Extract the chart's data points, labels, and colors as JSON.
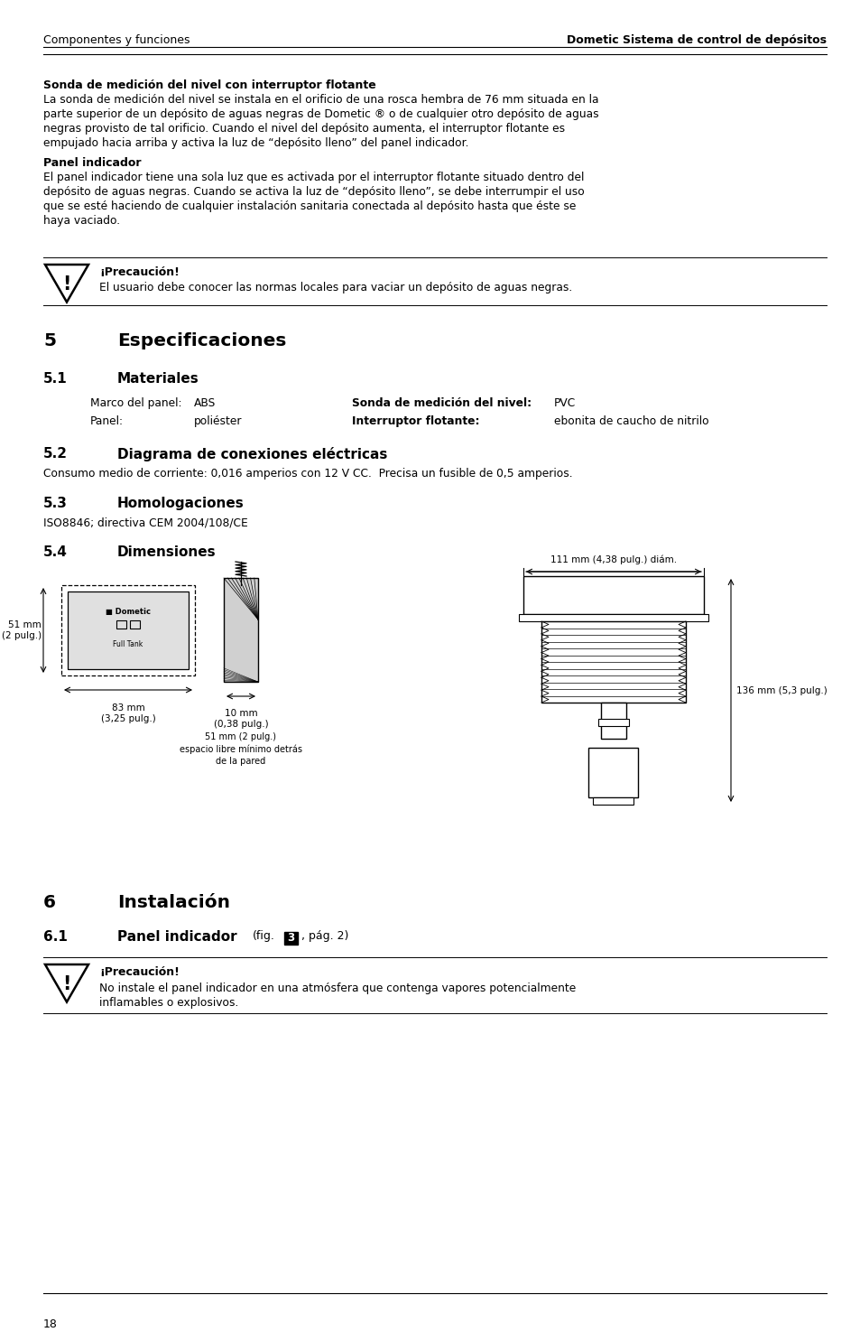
{
  "header_left": "Componentes y funciones",
  "header_right": "Dometic Sistema de control de depósitos",
  "section_bold1": "Sonda de medición del nivel con interruptor flotante",
  "para1": "La sonda de medición del nivel se instala en el orificio de una rosca hembra de 76 mm situada en la\nparte superior de un depósito de aguas negras de Dometic ® o de cualquier otro depósito de aguas\nnegras provisto de tal orificio. Cuando el nivel del depósito aumenta, el interruptor flotante es\nempujado hacia arriba y activa la luz de “depósito lleno” del panel indicador.",
  "section_bold2": "Panel indicador",
  "para2": "El panel indicador tiene una sola luz que es activada por el interruptor flotante situado dentro del\ndepósito de aguas negras. Cuando se activa la luz de “depósito lleno”, se debe interrumpir el uso\nque se esté haciendo de cualquier instalación sanitaria conectada al depósito hasta que éste se\nhaya vaciado.",
  "caution1_title": "¡Precaución!",
  "caution1_text": "El usuario debe conocer las normas locales para vaciar un depósito de aguas negras.",
  "sec5_num": "5",
  "sec5_title": "Especificaciones",
  "sec51_num": "5.1",
  "sec51_title": "Materiales",
  "mat_label1": "Marco del panel:",
  "mat_val1": "ABS",
  "mat_label2": "Sonda de medición del nivel:",
  "mat_val2": "PVC",
  "mat_label3": "Panel:",
  "mat_val3": "poliéster",
  "mat_label4": "Interruptor flotante:",
  "mat_val4": "ebonita de caucho de nitrilo",
  "sec52_num": "5.2",
  "sec52_title": "Diagrama de conexiones eléctricas",
  "para52": "Consumo medio de corriente: 0,016 amperios con 12 V CC.  Precisa un fusible de 0,5 amperios.",
  "sec53_num": "5.3",
  "sec53_title": "Homologaciones",
  "para53": "ISO8846; directiva CEM 2004/108/CE",
  "sec54_num": "5.4",
  "sec54_title": "Dimensiones",
  "dim_label1": "111 mm (4,38 pulg.) diám.",
  "dim_label2": "51 mm\n(2 pulg.)",
  "dim_label3": "83 mm\n(3,25 pulg.)",
  "dim_label4": "10 mm\n(0,38 pulg.)",
  "dim_label5": "51 mm (2 pulg.)\nespacio libre mínimo detrás\nde la pared",
  "dim_label6": "136 mm (5,3 pulg.)",
  "sec6_num": "6",
  "sec6_title": "Instalación",
  "sec61_num": "6.1",
  "sec61_title": "Panel indicador",
  "caution2_title": "¡Precaución!",
  "caution2_text": "No instale el panel indicador en una atmósfera que contenga vapores potencialmente\ninflamables o explosivos.",
  "footer_page": "18",
  "bg_color": "#ffffff",
  "text_color": "#000000"
}
